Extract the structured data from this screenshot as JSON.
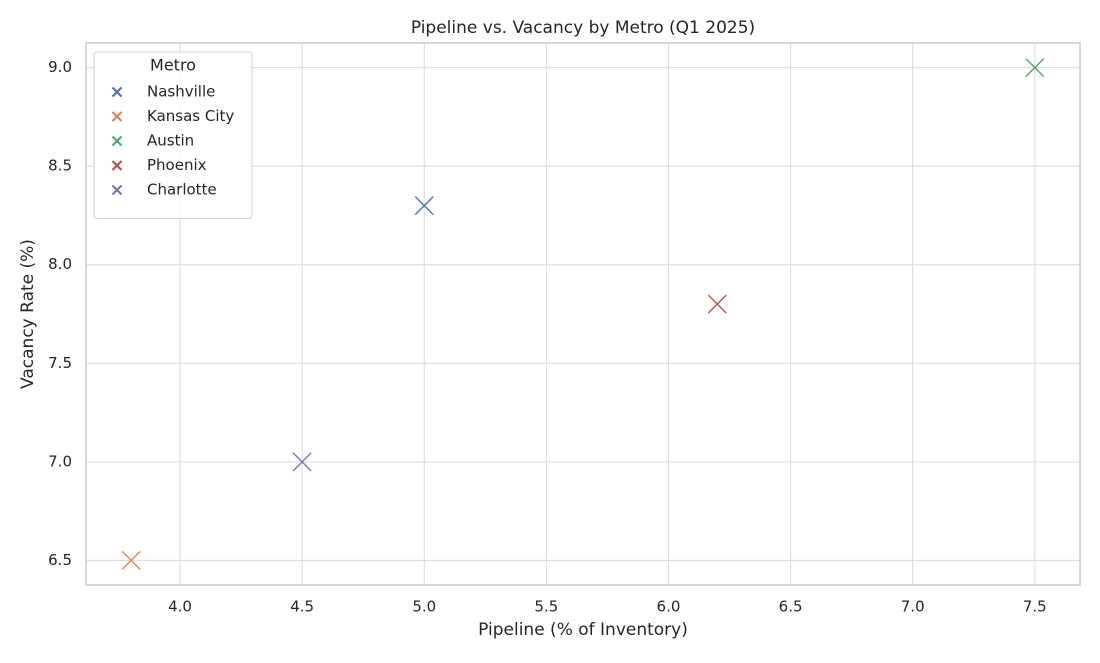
{
  "chart_data": {
    "type": "scatter",
    "title": "Pipeline vs. Vacancy by Metro (Q1 2025)",
    "x_label": "Pipeline (% of Inventory)",
    "y_label": "Vacancy Rate (%)",
    "legend_title": "Metro",
    "legend": "upper left",
    "grid": true,
    "marker": "x",
    "series": [
      {
        "name": "Nashville",
        "color": "#4c72b0",
        "x": [
          5.0
        ],
        "values": [
          8.3
        ]
      },
      {
        "name": "Kansas City",
        "color": "#dd8452",
        "x": [
          3.8
        ],
        "values": [
          6.5
        ]
      },
      {
        "name": "Austin",
        "color": "#55a868",
        "x": [
          7.5
        ],
        "values": [
          9.0
        ]
      },
      {
        "name": "Phoenix",
        "color": "#c44e52",
        "x": [
          6.2
        ],
        "values": [
          7.8
        ]
      },
      {
        "name": "Charlotte",
        "color": "#8172b3",
        "x": [
          4.5
        ],
        "values": [
          7.0
        ]
      }
    ],
    "xlim": [
      3.615,
      7.685
    ],
    "xticks": [
      {
        "value": 4,
        "label": "4.0"
      },
      4.5,
      {
        "value": 5,
        "label": "5.0"
      },
      5.5,
      {
        "value": 6,
        "label": "6.0"
      },
      6.5,
      {
        "value": 7,
        "label": "7.0"
      },
      7.5
    ],
    "ylim": [
      6.375,
      9.125
    ],
    "yticks": [
      6.5,
      {
        "value": 7,
        "label": "7.0"
      },
      7.5,
      {
        "value": 8,
        "label": "8.0"
      },
      8.5,
      {
        "value": 9,
        "label": "9.0"
      }
    ]
  }
}
